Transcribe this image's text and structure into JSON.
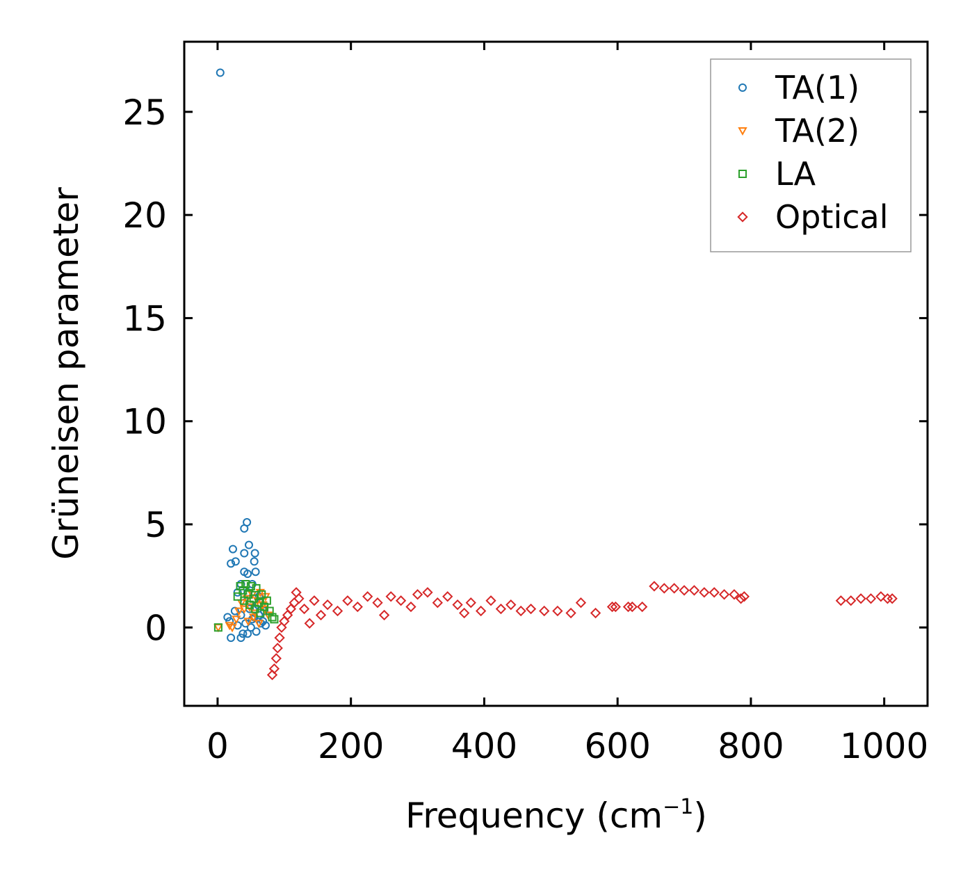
{
  "chart_data": {
    "type": "scatter",
    "xlabel": "Frequency (cm",
    "xlabel_sup": "−1",
    "xlabel_close": ")",
    "ylabel": "Grüneisen parameter",
    "xlim": [
      -50,
      1065
    ],
    "ylim": [
      -3.8,
      28.4
    ],
    "xticks": [
      0,
      200,
      400,
      600,
      800,
      1000
    ],
    "yticks": [
      0,
      5,
      10,
      15,
      20,
      25
    ],
    "xtick_labels": [
      "0",
      "200",
      "400",
      "600",
      "800",
      "1000"
    ],
    "ytick_labels": [
      "0",
      "5",
      "10",
      "15",
      "20",
      "25"
    ],
    "legend_position": "top-right",
    "series": [
      {
        "name": "TA(1)",
        "marker": "circle",
        "color": "#1f77b4",
        "points": [
          [
            4,
            26.9
          ],
          [
            44,
            5.1
          ],
          [
            40,
            4.8
          ],
          [
            47,
            4.0
          ],
          [
            23,
            3.8
          ],
          [
            40,
            3.6
          ],
          [
            56,
            3.6
          ],
          [
            20,
            3.1
          ],
          [
            27,
            3.2
          ],
          [
            55,
            3.2
          ],
          [
            40,
            2.7
          ],
          [
            45,
            2.6
          ],
          [
            57,
            2.7
          ],
          [
            35,
            2.1
          ],
          [
            52,
            2.1
          ],
          [
            30,
            1.7
          ],
          [
            45,
            1.7
          ],
          [
            62,
            1.5
          ],
          [
            40,
            1.2
          ],
          [
            60,
            1.1
          ],
          [
            26,
            0.8
          ],
          [
            48,
            0.9
          ],
          [
            70,
            0.8
          ],
          [
            35,
            0.6
          ],
          [
            55,
            0.5
          ],
          [
            15,
            0.5
          ],
          [
            18,
            0.3
          ],
          [
            42,
            0.2
          ],
          [
            65,
            0.2
          ],
          [
            30,
            0.1
          ],
          [
            50,
            0.0
          ],
          [
            72,
            0.1
          ],
          [
            38,
            -0.3
          ],
          [
            58,
            -0.2
          ],
          [
            20,
            -0.5
          ],
          [
            35,
            -0.5
          ],
          [
            45,
            -0.3
          ],
          [
            62,
            0.6
          ],
          [
            68,
            0.3
          ],
          [
            52,
            0.4
          ]
        ]
      },
      {
        "name": "TA(2)",
        "marker": "triangle-down",
        "color": "#ff7f0e",
        "points": [
          [
            1,
            0.0
          ],
          [
            18,
            0.1
          ],
          [
            22,
            0.0
          ],
          [
            28,
            0.4
          ],
          [
            32,
            0.8
          ],
          [
            36,
            1.2
          ],
          [
            40,
            0.9
          ],
          [
            44,
            1.4
          ],
          [
            48,
            1.0
          ],
          [
            52,
            1.6
          ],
          [
            56,
            0.7
          ],
          [
            60,
            1.3
          ],
          [
            64,
            1.7
          ],
          [
            68,
            1.1
          ],
          [
            72,
            1.5
          ],
          [
            76,
            0.6
          ],
          [
            46,
            0.3
          ],
          [
            54,
            0.5
          ],
          [
            62,
            0.2
          ],
          [
            70,
            0.9
          ]
        ]
      },
      {
        "name": "LA",
        "marker": "square",
        "color": "#2ca02c",
        "points": [
          [
            1,
            0.0
          ],
          [
            30,
            1.5
          ],
          [
            34,
            2.0
          ],
          [
            38,
            1.8
          ],
          [
            42,
            2.1
          ],
          [
            46,
            1.6
          ],
          [
            50,
            2.0
          ],
          [
            54,
            1.4
          ],
          [
            58,
            1.9
          ],
          [
            62,
            1.2
          ],
          [
            66,
            1.6
          ],
          [
            70,
            1.0
          ],
          [
            74,
            1.3
          ],
          [
            78,
            0.8
          ],
          [
            82,
            0.5
          ],
          [
            85,
            0.4
          ],
          [
            40,
            1.3
          ],
          [
            48,
            1.1
          ],
          [
            56,
            0.9
          ],
          [
            64,
            0.7
          ]
        ]
      },
      {
        "name": "Optical",
        "marker": "diamond",
        "color": "#d62728",
        "points": [
          [
            82,
            -2.3
          ],
          [
            85,
            -2.0
          ],
          [
            88,
            -1.5
          ],
          [
            90,
            -1.0
          ],
          [
            93,
            -0.5
          ],
          [
            96,
            0.0
          ],
          [
            100,
            0.3
          ],
          [
            105,
            0.6
          ],
          [
            110,
            0.9
          ],
          [
            115,
            1.2
          ],
          [
            118,
            1.7
          ],
          [
            122,
            1.4
          ],
          [
            130,
            0.9
          ],
          [
            138,
            0.2
          ],
          [
            145,
            1.3
          ],
          [
            155,
            0.6
          ],
          [
            165,
            1.1
          ],
          [
            180,
            0.8
          ],
          [
            195,
            1.3
          ],
          [
            210,
            1.0
          ],
          [
            225,
            1.5
          ],
          [
            240,
            1.2
          ],
          [
            250,
            0.6
          ],
          [
            260,
            1.5
          ],
          [
            275,
            1.3
          ],
          [
            290,
            1.0
          ],
          [
            300,
            1.6
          ],
          [
            315,
            1.7
          ],
          [
            330,
            1.2
          ],
          [
            345,
            1.5
          ],
          [
            360,
            1.1
          ],
          [
            370,
            0.7
          ],
          [
            380,
            1.2
          ],
          [
            395,
            0.8
          ],
          [
            410,
            1.3
          ],
          [
            425,
            0.9
          ],
          [
            440,
            1.1
          ],
          [
            455,
            0.8
          ],
          [
            470,
            0.9
          ],
          [
            490,
            0.8
          ],
          [
            510,
            0.8
          ],
          [
            530,
            0.7
          ],
          [
            545,
            1.2
          ],
          [
            567,
            0.7
          ],
          [
            592,
            1.0
          ],
          [
            597,
            1.0
          ],
          [
            616,
            1.0
          ],
          [
            622,
            1.0
          ],
          [
            637,
            1.0
          ],
          [
            655,
            2.0
          ],
          [
            670,
            1.9
          ],
          [
            685,
            1.9
          ],
          [
            700,
            1.8
          ],
          [
            715,
            1.8
          ],
          [
            730,
            1.7
          ],
          [
            745,
            1.7
          ],
          [
            760,
            1.6
          ],
          [
            775,
            1.6
          ],
          [
            785,
            1.4
          ],
          [
            790,
            1.5
          ],
          [
            935,
            1.3
          ],
          [
            950,
            1.3
          ],
          [
            965,
            1.4
          ],
          [
            980,
            1.4
          ],
          [
            995,
            1.5
          ],
          [
            1005,
            1.4
          ],
          [
            1012,
            1.4
          ]
        ]
      }
    ]
  }
}
